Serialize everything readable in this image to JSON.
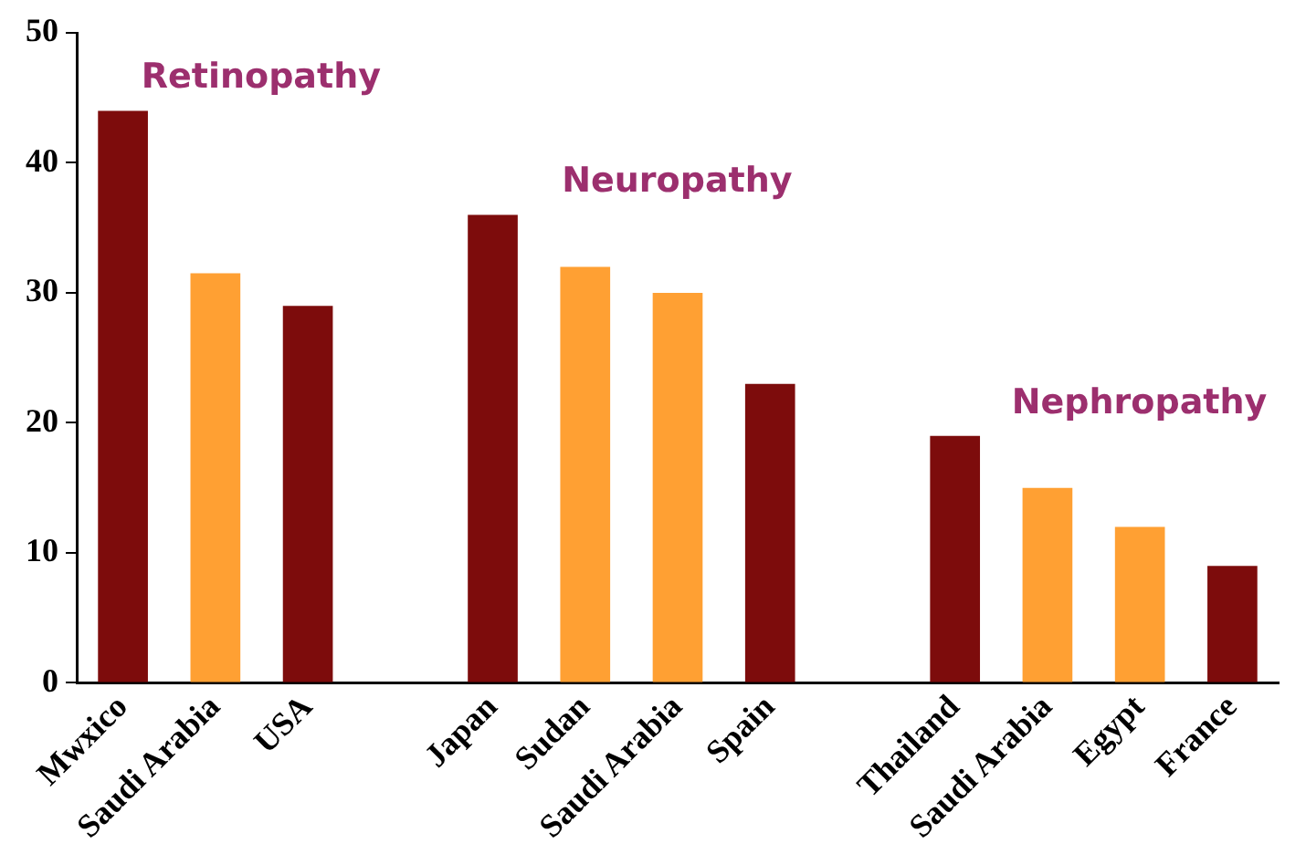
{
  "chart_data": {
    "type": "bar",
    "categories": [
      "Mwxico",
      "Saudi Arabia",
      "USA",
      null,
      "Japan",
      "Sudan",
      "Saudi Arabia",
      "Spain",
      null,
      "Thailand",
      "Saudi Arabia",
      "Egypt",
      "France"
    ],
    "values": [
      44,
      31.5,
      29,
      null,
      36,
      32,
      30,
      23,
      null,
      19,
      15,
      12,
      9
    ],
    "colors": [
      "#7d0c0c",
      "#ffa033",
      "#7d0c0c",
      null,
      "#7d0c0c",
      "#ffa033",
      "#ffa033",
      "#7d0c0c",
      null,
      "#7d0c0c",
      "#ffa033",
      "#ffa033",
      "#7d0c0c"
    ],
    "ylim": [
      0,
      50
    ],
    "yticks": [
      0,
      10,
      20,
      30,
      40,
      50
    ],
    "grid": false,
    "legend": false,
    "annotations": [
      "Retinopathy",
      "Neuropathy",
      "Nephropathy"
    ]
  }
}
